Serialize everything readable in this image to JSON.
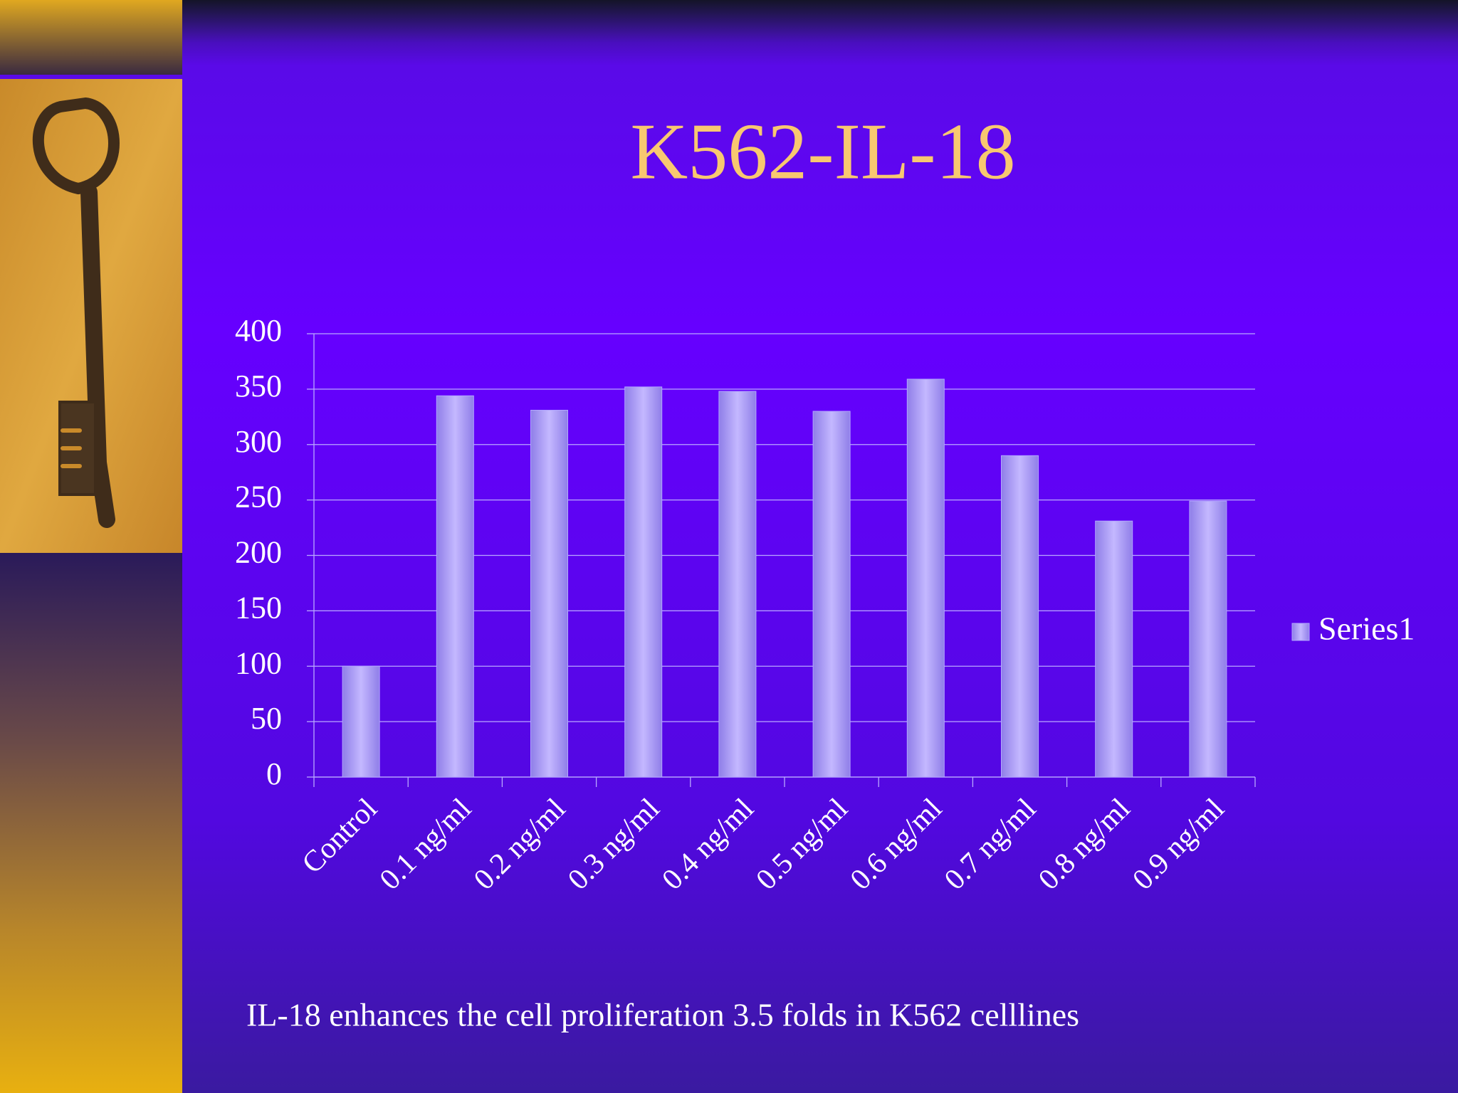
{
  "chart_data": {
    "type": "bar",
    "title": "K562-IL-18",
    "caption": "IL-18 enhances the cell proliferation 3.5 folds in K562 celllines",
    "categories": [
      "Control",
      "0.1 ng/ml",
      "0.2 ng/ml",
      "0.3 ng/ml",
      "0.4 ng/ml",
      "0.5 ng/ml",
      "0.6 ng/ml",
      "0.7 ng/ml",
      "0.8 ng/ml",
      "0.9 ng/ml"
    ],
    "series": [
      {
        "name": "Series1",
        "color": "#b3a6ff",
        "values": [
          100,
          344,
          331,
          352,
          348,
          330,
          359,
          290,
          231,
          249
        ]
      }
    ],
    "ylim": [
      0,
      400
    ],
    "yticks": [
      0,
      50,
      100,
      150,
      200,
      250,
      300,
      350,
      400
    ],
    "grid": true,
    "legend": "right"
  }
}
